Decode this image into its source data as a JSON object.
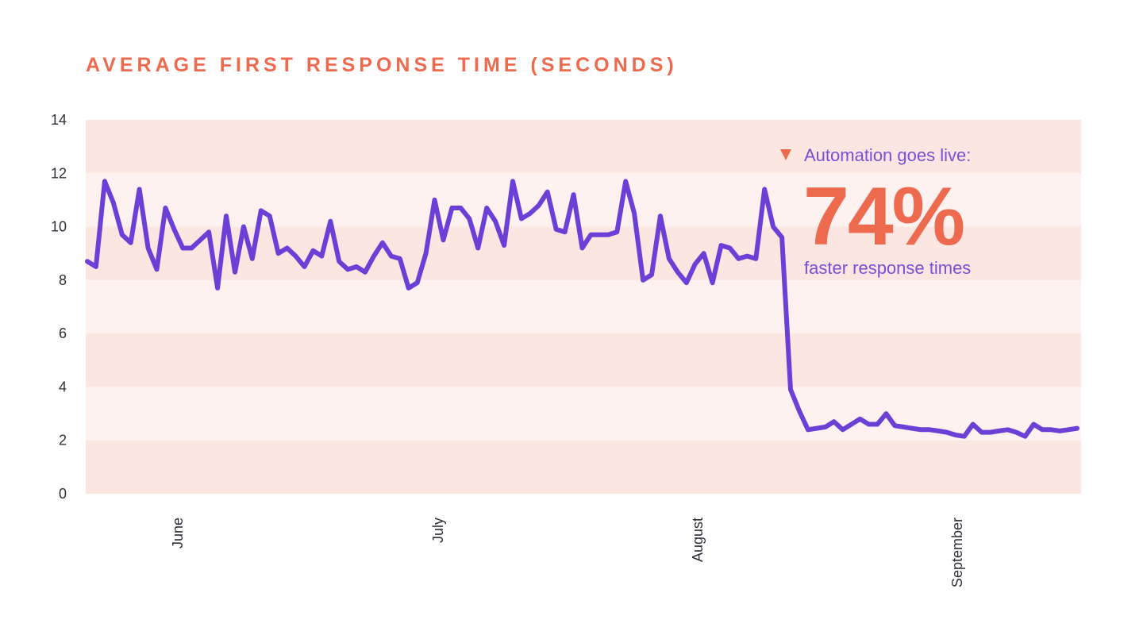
{
  "chart_data": {
    "type": "line",
    "title": "AVERAGE FIRST RESPONSE TIME (SECONDS)",
    "xlabel": "",
    "ylabel": "",
    "ylim": [
      0,
      14
    ],
    "yticks": [
      "0",
      "2",
      "4",
      "6",
      "8",
      "10",
      "12",
      "14"
    ],
    "xtick_labels": [
      "June",
      "July",
      "August",
      "September"
    ],
    "grid": "alternating horizontal bands",
    "colors": {
      "line": "#6c3fd6",
      "title": "#ee6a4f",
      "band_dark": "#fbe6e2",
      "band_light": "#fdf2f0",
      "annotation_accent": "#ee6a4f",
      "annotation_text": "#7a4fd8"
    },
    "series": [
      {
        "values": [
          8.7,
          8.5,
          11.7,
          10.9,
          9.7,
          9.4,
          11.4,
          9.2,
          8.4,
          10.7,
          9.9,
          9.2,
          9.2,
          9.5,
          9.8,
          7.7,
          10.4,
          8.3,
          10.0,
          8.8,
          10.6,
          10.4,
          9.0,
          9.2,
          8.9,
          8.5,
          9.1,
          8.9,
          10.2,
          8.7,
          8.4,
          8.5,
          8.3,
          8.9,
          9.4,
          8.9,
          8.8,
          7.7,
          7.9,
          9.0,
          11.0,
          9.5,
          10.7,
          10.7,
          10.3,
          9.2,
          10.7,
          10.2,
          9.3,
          11.7,
          10.3,
          10.5,
          10.8,
          11.3,
          9.9,
          9.8,
          11.2,
          9.2,
          9.7,
          9.7,
          9.7,
          9.8,
          11.7,
          10.5,
          8.0,
          8.2,
          10.4,
          8.8,
          8.3,
          7.9,
          8.6,
          9.0,
          7.9,
          9.3,
          9.2,
          8.8,
          8.9,
          8.8,
          11.4,
          10.0,
          9.6,
          3.9,
          3.1,
          2.4,
          2.45,
          2.5,
          2.7,
          2.4,
          2.6,
          2.8,
          2.6,
          2.6,
          3.0,
          2.55,
          2.5,
          2.45,
          2.4,
          2.4,
          2.35,
          2.3,
          2.2,
          2.15,
          2.6,
          2.3,
          2.3,
          2.35,
          2.4,
          2.3,
          2.15,
          2.6,
          2.4,
          2.4,
          2.35,
          2.4,
          2.45
        ]
      }
    ],
    "annotation": {
      "marker": "▼",
      "line1": "Automation goes live:",
      "big": "74%",
      "line2": "faster response times"
    }
  }
}
